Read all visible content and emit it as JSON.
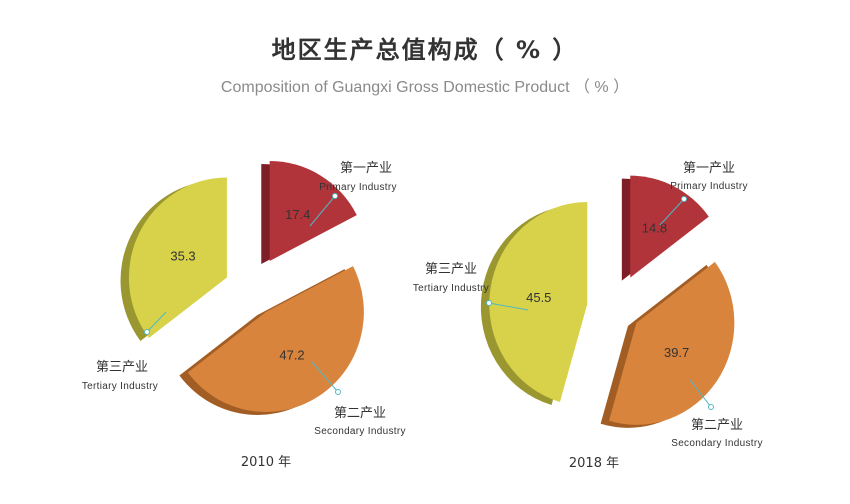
{
  "title": "地区生产总值构成（ % ）",
  "subtitle": "Composition of Guangxi Gross Domestic Product （ % ）",
  "colors": {
    "primary": "#b2343b",
    "primary_side": "#7e1f27",
    "secondary": "#d9843d",
    "secondary_side": "#a25d24",
    "tertiary": "#d7d24a",
    "tertiary_side": "#9a9630",
    "leader": "#4fb8c4"
  },
  "chart_data": [
    {
      "type": "pie",
      "year_label": "2010 年",
      "slices": [
        {
          "key": "primary",
          "label_cn": "第一产业",
          "label_en": "Primary  Industry",
          "value": 17.4,
          "value_label": "17.4"
        },
        {
          "key": "secondary",
          "label_cn": "第二产业",
          "label_en": "Secondary  Industry",
          "value": 47.2,
          "value_label": "47.2"
        },
        {
          "key": "tertiary",
          "label_cn": "第三产业",
          "label_en": "Tertiary  Industry",
          "value": 35.3,
          "value_label": "35.3"
        }
      ]
    },
    {
      "type": "pie",
      "year_label": "2018 年",
      "slices": [
        {
          "key": "primary",
          "label_cn": "第一产业",
          "label_en": "Primary  Industry",
          "value": 14.8,
          "value_label": "14.8"
        },
        {
          "key": "secondary",
          "label_cn": "第二产业",
          "label_en": "Secondary  Industry",
          "value": 39.7,
          "value_label": "39.7"
        },
        {
          "key": "tertiary",
          "label_cn": "第三产业",
          "label_en": "Tertiary  Industry",
          "value": 45.5,
          "value_label": "45.5"
        }
      ]
    }
  ]
}
